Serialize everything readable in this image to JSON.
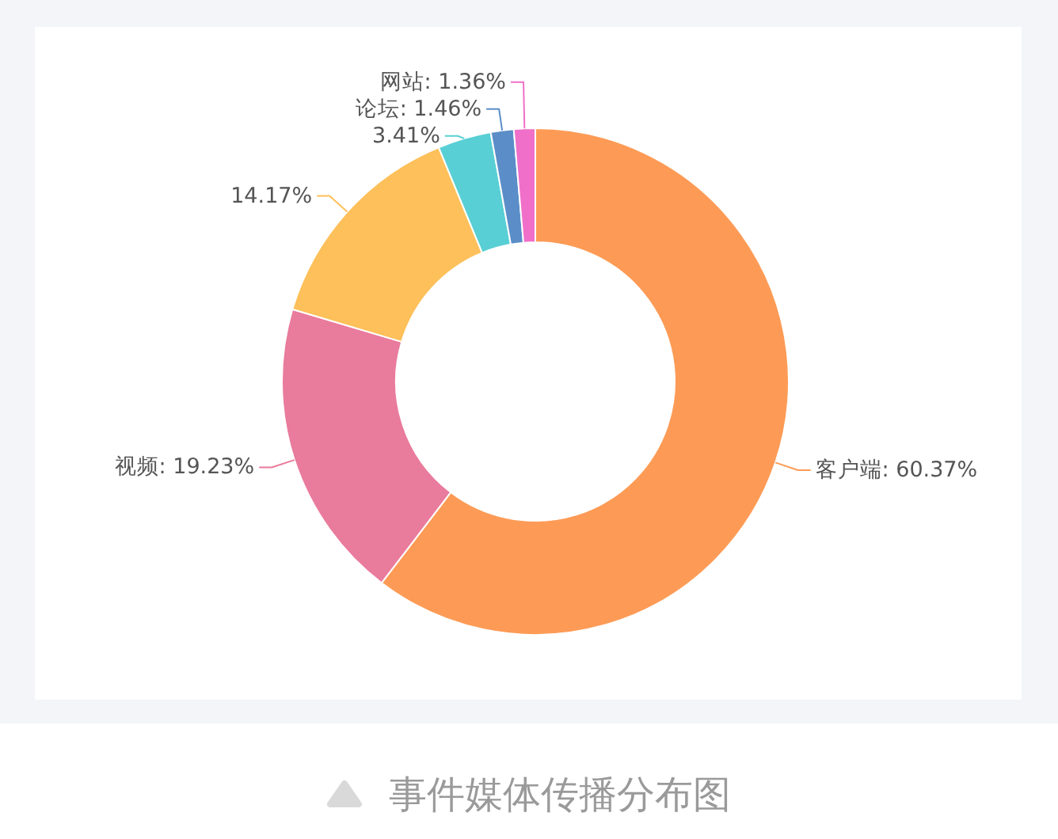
{
  "chart_data": {
    "type": "donut",
    "categories": [
      "客户端",
      "视频",
      null,
      null,
      "论坛",
      "网站"
    ],
    "values": [
      60.37,
      19.23,
      14.17,
      3.41,
      1.46,
      1.36
    ],
    "value_labels": [
      "60.37%",
      "19.23%",
      "14.17%",
      "3.41%",
      "1.46%",
      "1.36%"
    ],
    "colors": [
      "#fd9b56",
      "#e97b9c",
      "#fdc05a",
      "#58cfd4",
      "#5b8ec8",
      "#f06fc9"
    ],
    "annotations": [
      "事件媒体传播分布图"
    ]
  }
}
